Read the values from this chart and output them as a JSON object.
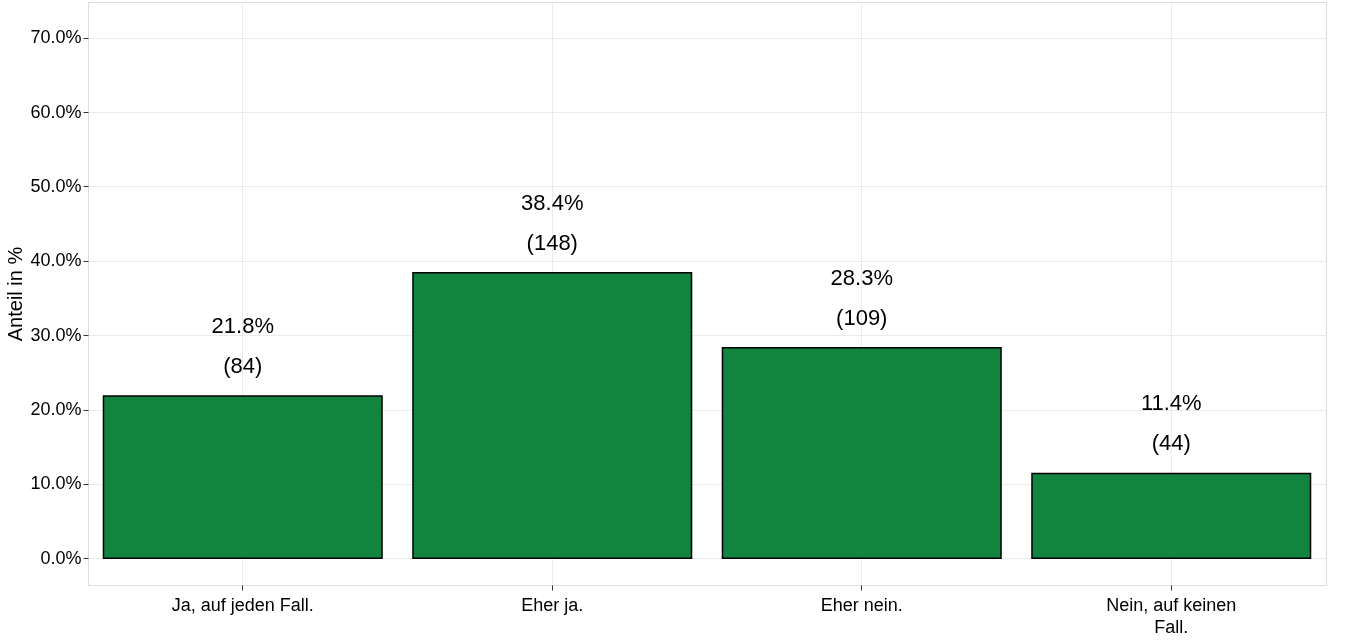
{
  "chart_data": {
    "type": "bar",
    "ylabel": "Anteil in %",
    "categories": [
      "Ja, auf jeden Fall.",
      "Eher ja.",
      "Eher nein.",
      "Nein, auf keinen Fall."
    ],
    "values": [
      21.8,
      38.4,
      28.3,
      11.4
    ],
    "color": "#11843f",
    "value_labels": [
      "21.8%\n(84)",
      "38.4%\n(148)",
      "28.3%\n(109)",
      "11.4%\n(44)"
    ],
    "ylim": [
      -3.6,
      74.8
    ],
    "yticks": [
      {
        "value": 0,
        "label": "0.0%"
      },
      {
        "value": 10,
        "label": "10.0%"
      },
      {
        "value": 20,
        "label": "20.0%"
      },
      {
        "value": 30,
        "label": "30.0%"
      },
      {
        "value": 40,
        "label": "40.0%"
      },
      {
        "value": 50,
        "label": "50.0%"
      },
      {
        "value": 60,
        "label": "60.0%"
      },
      {
        "value": 70,
        "label": "70.0%"
      }
    ],
    "grid": true
  }
}
